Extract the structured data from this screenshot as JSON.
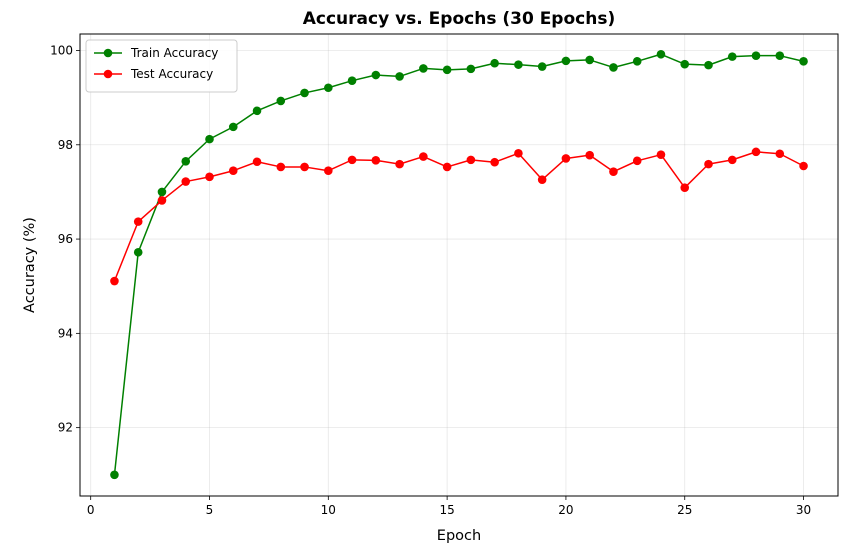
{
  "chart_data": {
    "type": "line",
    "title": "Accuracy vs. Epochs (30 Epochs)",
    "xlabel": "Epoch",
    "ylabel": "Accuracy (%)",
    "xlim": [
      -0.45,
      31.45
    ],
    "ylim": [
      90.55,
      100.35
    ],
    "xticks": [
      0,
      5,
      10,
      15,
      20,
      25,
      30
    ],
    "yticks": [
      92,
      94,
      96,
      98,
      100
    ],
    "grid": true,
    "legend_position": "top-left",
    "x": [
      1,
      2,
      3,
      4,
      5,
      6,
      7,
      8,
      9,
      10,
      11,
      12,
      13,
      14,
      15,
      16,
      17,
      18,
      19,
      20,
      21,
      22,
      23,
      24,
      25,
      26,
      27,
      28,
      29,
      30
    ],
    "series": [
      {
        "name": "Train Accuracy",
        "color": "#008000",
        "values": [
          91.0,
          95.72,
          97.0,
          97.65,
          98.12,
          98.38,
          98.72,
          98.93,
          99.1,
          99.21,
          99.36,
          99.48,
          99.45,
          99.62,
          99.59,
          99.61,
          99.73,
          99.7,
          99.66,
          99.78,
          99.8,
          99.64,
          99.77,
          99.92,
          99.71,
          99.69,
          99.87,
          99.89,
          99.89,
          99.77
        ]
      },
      {
        "name": "Test Accuracy",
        "color": "#ff0000",
        "values": [
          95.11,
          96.37,
          96.82,
          97.22,
          97.32,
          97.45,
          97.64,
          97.53,
          97.53,
          97.45,
          97.68,
          97.67,
          97.59,
          97.75,
          97.53,
          97.68,
          97.63,
          97.82,
          97.26,
          97.71,
          97.78,
          97.43,
          97.66,
          97.79,
          97.09,
          97.59,
          97.68,
          97.85,
          97.81,
          97.55
        ]
      }
    ]
  }
}
